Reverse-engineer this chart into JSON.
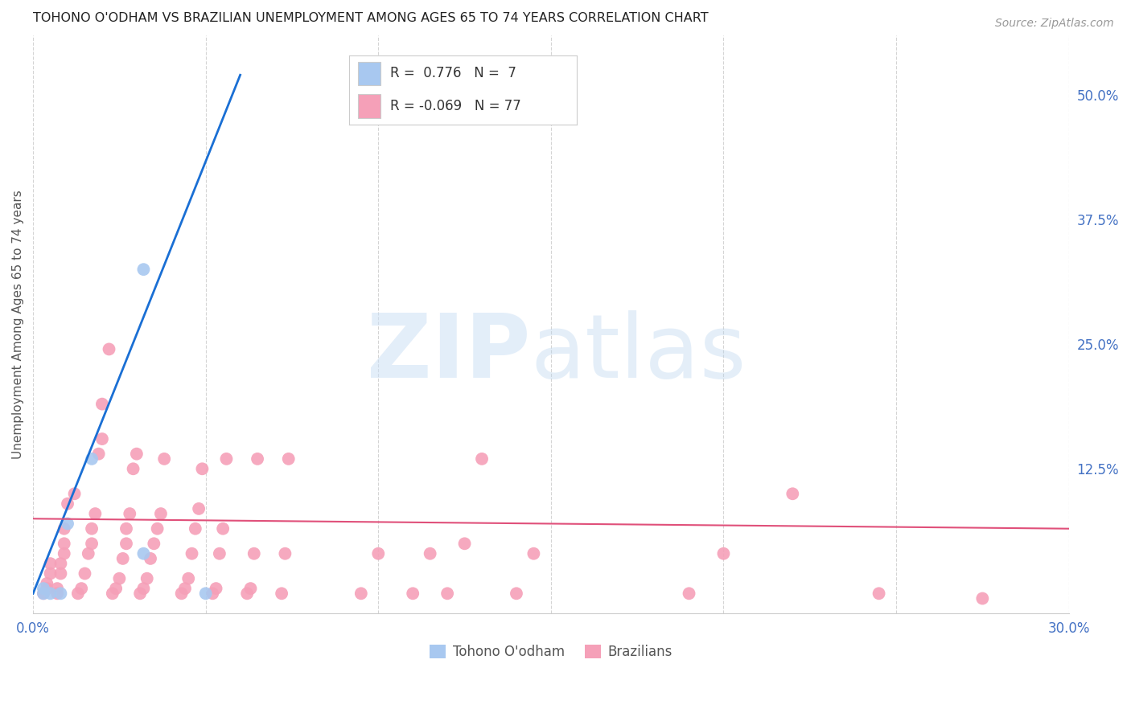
{
  "title": "TOHONO O'ODHAM VS BRAZILIAN UNEMPLOYMENT AMONG AGES 65 TO 74 YEARS CORRELATION CHART",
  "source": "Source: ZipAtlas.com",
  "ylabel": "Unemployment Among Ages 65 to 74 years",
  "xlim": [
    0.0,
    0.3
  ],
  "ylim": [
    -0.02,
    0.56
  ],
  "xticks": [
    0.0,
    0.05,
    0.1,
    0.15,
    0.2,
    0.25,
    0.3
  ],
  "xticklabels": [
    "0.0%",
    "",
    "",
    "",
    "",
    "",
    "30.0%"
  ],
  "yticks_right": [
    0.0,
    0.125,
    0.25,
    0.375,
    0.5
  ],
  "yticklabels_right": [
    "",
    "12.5%",
    "25.0%",
    "37.5%",
    "50.0%"
  ],
  "background_color": "#ffffff",
  "grid_color": "#d0d0d0",
  "tohono_color": "#a8c8f0",
  "brazilian_color": "#f5a0b8",
  "tohono_line_color": "#1a6fd4",
  "brazilian_line_color": "#e0507a",
  "tohono_points": [
    [
      0.003,
      0.0
    ],
    [
      0.003,
      0.005
    ],
    [
      0.005,
      0.0
    ],
    [
      0.008,
      0.0
    ],
    [
      0.01,
      0.07
    ],
    [
      0.017,
      0.135
    ],
    [
      0.05,
      0.0
    ],
    [
      0.032,
      0.325
    ],
    [
      0.032,
      0.04
    ]
  ],
  "brazilian_points": [
    [
      0.003,
      0.0
    ],
    [
      0.004,
      0.005
    ],
    [
      0.004,
      0.01
    ],
    [
      0.005,
      0.02
    ],
    [
      0.005,
      0.03
    ],
    [
      0.007,
      0.0
    ],
    [
      0.007,
      0.005
    ],
    [
      0.008,
      0.02
    ],
    [
      0.008,
      0.03
    ],
    [
      0.009,
      0.04
    ],
    [
      0.009,
      0.05
    ],
    [
      0.009,
      0.065
    ],
    [
      0.01,
      0.09
    ],
    [
      0.012,
      0.1
    ],
    [
      0.013,
      0.0
    ],
    [
      0.014,
      0.005
    ],
    [
      0.015,
      0.02
    ],
    [
      0.016,
      0.04
    ],
    [
      0.017,
      0.05
    ],
    [
      0.017,
      0.065
    ],
    [
      0.018,
      0.08
    ],
    [
      0.019,
      0.14
    ],
    [
      0.02,
      0.155
    ],
    [
      0.02,
      0.19
    ],
    [
      0.022,
      0.245
    ],
    [
      0.023,
      0.0
    ],
    [
      0.024,
      0.005
    ],
    [
      0.025,
      0.015
    ],
    [
      0.026,
      0.035
    ],
    [
      0.027,
      0.05
    ],
    [
      0.027,
      0.065
    ],
    [
      0.028,
      0.08
    ],
    [
      0.029,
      0.125
    ],
    [
      0.03,
      0.14
    ],
    [
      0.031,
      0.0
    ],
    [
      0.032,
      0.005
    ],
    [
      0.033,
      0.015
    ],
    [
      0.034,
      0.035
    ],
    [
      0.035,
      0.05
    ],
    [
      0.036,
      0.065
    ],
    [
      0.037,
      0.08
    ],
    [
      0.038,
      0.135
    ],
    [
      0.043,
      0.0
    ],
    [
      0.044,
      0.005
    ],
    [
      0.045,
      0.015
    ],
    [
      0.046,
      0.04
    ],
    [
      0.047,
      0.065
    ],
    [
      0.048,
      0.085
    ],
    [
      0.049,
      0.125
    ],
    [
      0.052,
      0.0
    ],
    [
      0.053,
      0.005
    ],
    [
      0.054,
      0.04
    ],
    [
      0.055,
      0.065
    ],
    [
      0.056,
      0.135
    ],
    [
      0.062,
      0.0
    ],
    [
      0.063,
      0.005
    ],
    [
      0.064,
      0.04
    ],
    [
      0.065,
      0.135
    ],
    [
      0.072,
      0.0
    ],
    [
      0.073,
      0.04
    ],
    [
      0.074,
      0.135
    ],
    [
      0.095,
      0.0
    ],
    [
      0.1,
      0.04
    ],
    [
      0.11,
      0.0
    ],
    [
      0.115,
      0.04
    ],
    [
      0.12,
      0.0
    ],
    [
      0.125,
      0.05
    ],
    [
      0.13,
      0.135
    ],
    [
      0.14,
      0.0
    ],
    [
      0.145,
      0.04
    ],
    [
      0.19,
      0.0
    ],
    [
      0.2,
      0.04
    ],
    [
      0.22,
      0.1
    ],
    [
      0.245,
      0.0
    ],
    [
      0.275,
      -0.005
    ]
  ],
  "tohono_trendline_x": [
    0.0,
    0.06
  ],
  "tohono_trendline_y": [
    0.0,
    0.52
  ],
  "brazilian_trendline_x": [
    0.0,
    0.3
  ],
  "brazilian_trendline_y": [
    0.075,
    0.065
  ]
}
